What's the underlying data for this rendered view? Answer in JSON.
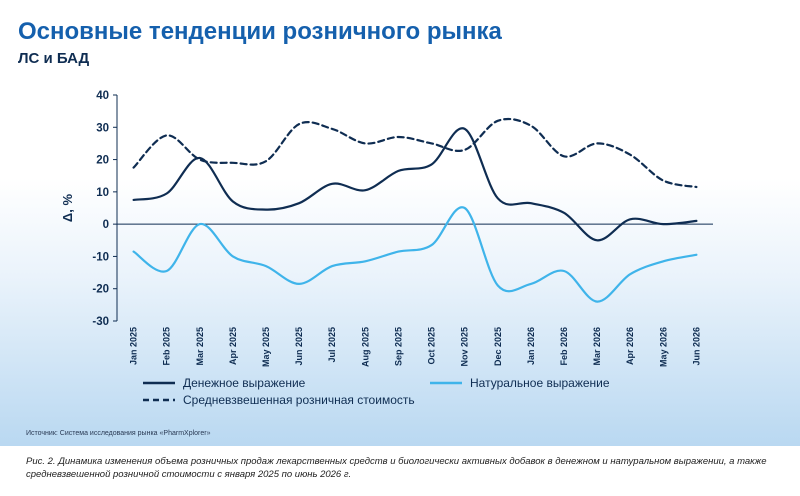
{
  "title": "Основные тенденции розничного рынка",
  "subtitle": "ЛС и БАД",
  "source": "Источник: Система исследования рынка «PharmXplorer»",
  "caption": "Рис. 2. Динамика изменения объема розничных продаж лекарственных средств и биологически активных добавок в денежном и натуральном выражении, а также средневзвешенной розничной стоимости с января 2025 по июнь 2026 г.",
  "colors": {
    "title": "#1560ad",
    "money": "#0f2d52",
    "natural": "#3fb4ea",
    "price": "#0f2d52"
  },
  "chart_data": {
    "type": "line",
    "ylabel": "Δ, %",
    "xlabel": "",
    "ylim": [
      -30,
      40
    ],
    "yticks": [
      40,
      30,
      20,
      10,
      0,
      -10,
      -20,
      -30
    ],
    "grid": false,
    "legend_position": "bottom",
    "categories": [
      "Jan 2025",
      "Feb 2025",
      "Mar 2025",
      "Apr 2025",
      "May 2025",
      "Jun 2025",
      "Jul 2025",
      "Aug 2025",
      "Sep 2025",
      "Oct 2025",
      "Nov 2025",
      "Dec 2025",
      "Jan 2026",
      "Feb 2026",
      "Mar 2026",
      "Apr 2026",
      "May 2026",
      "Jun 2026"
    ],
    "series": [
      {
        "name": "Денежное выражение",
        "style": "solid",
        "values": [
          7.5,
          9.5,
          20.5,
          7,
          4.5,
          6.5,
          12.5,
          10.5,
          16.5,
          18.5,
          29.5,
          8,
          6.5,
          3.5,
          -5,
          1.5,
          0,
          1
        ]
      },
      {
        "name": "Натуральное выражение",
        "style": "solid",
        "values": [
          -8.5,
          -14.5,
          0,
          -10,
          -13,
          -18.5,
          -13,
          -11.5,
          -8.5,
          -6.5,
          5,
          -19,
          -18.5,
          -14.5,
          -24,
          -15.5,
          -11.5,
          -9.5
        ]
      },
      {
        "name": "Средневзвешенная розничная стоимость",
        "style": "dashed",
        "values": [
          17.5,
          27.5,
          20,
          19,
          19.5,
          31,
          29.5,
          25,
          27,
          25,
          23,
          32,
          30.5,
          21,
          25,
          21.5,
          13.5,
          11.5
        ]
      }
    ]
  }
}
